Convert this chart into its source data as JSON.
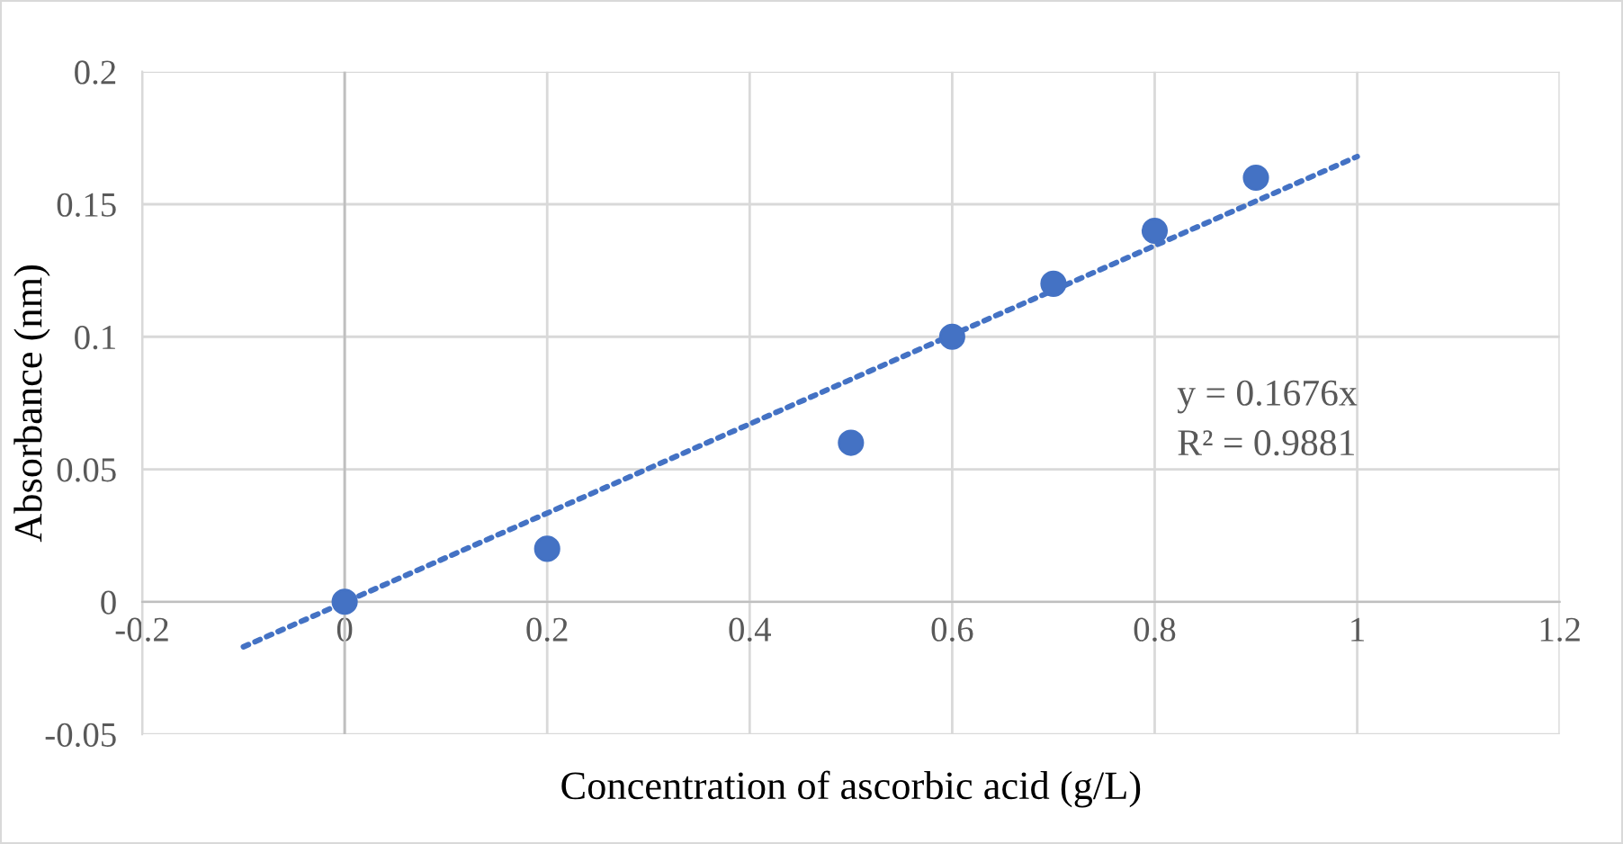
{
  "chart_data": {
    "type": "scatter",
    "xlabel": "Concentration of ascorbic acid (g/L)",
    "ylabel": "Absorbance (nm)",
    "x": [
      0,
      0.2,
      0.5,
      0.6,
      0.7,
      0.8,
      0.9
    ],
    "series": [
      {
        "color": "#4472c4",
        "values": [
          0,
          0.02,
          0.06,
          0.1,
          0.12,
          0.14,
          0.16
        ],
        "marker": "circle"
      },
      {
        "type": "line",
        "color": "#4472c4",
        "x": [
          -0.1,
          1.0
        ],
        "values": [
          -0.017,
          0.168
        ],
        "line_style": "dotted",
        "marker": "none"
      }
    ],
    "annotations": [
      "y = 0.1676x",
      "R² = 0.9881"
    ],
    "xlim": [
      -0.2,
      1.2
    ],
    "xticks": [
      -0.2,
      0,
      0.2,
      0.4,
      0.6,
      0.8,
      1,
      1.2
    ],
    "ylim": [
      -0.05,
      0.2
    ],
    "yticks": [
      -0.05,
      0,
      0.05,
      0.1,
      0.15,
      0.2
    ],
    "grid": true,
    "legend": false
  }
}
